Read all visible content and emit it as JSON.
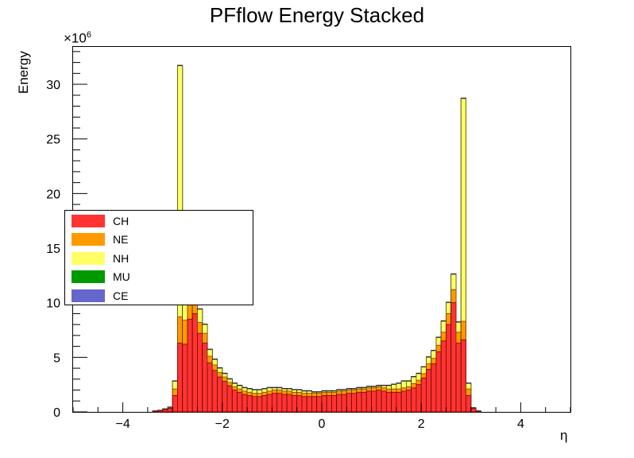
{
  "title": "PFflow Energy Stacked",
  "y_axis_title": "Energy",
  "x_axis_title": "η",
  "y_multiplier_base": "×10",
  "y_multiplier_exp": "6",
  "chart_data": {
    "type": "bar",
    "stacked": true,
    "title": "PFflow Energy Stacked",
    "xlabel": "η",
    "ylabel": "Energy",
    "y_scale_note": "×10^6",
    "xlim": [
      -5,
      5
    ],
    "ylim": [
      0,
      33.5
    ],
    "x_ticks": [
      -4,
      -2,
      0,
      2,
      4
    ],
    "x_tick_labels": [
      "−4",
      "−2",
      "0",
      "2",
      "4"
    ],
    "y_ticks": [
      0,
      5,
      10,
      15,
      20,
      25,
      30
    ],
    "y_tick_labels": [
      "0",
      "5",
      "10",
      "15",
      "20",
      "25",
      "30"
    ],
    "bin_width": 0.1,
    "x_bin_low_edges": [
      -3.4,
      -3.3,
      -3.2,
      -3.1,
      -3.0,
      -2.9,
      -2.8,
      -2.7,
      -2.6,
      -2.5,
      -2.4,
      -2.3,
      -2.2,
      -2.1,
      -2.0,
      -1.9,
      -1.8,
      -1.7,
      -1.6,
      -1.5,
      -1.4,
      -1.3,
      -1.2,
      -1.1,
      -1.0,
      -0.9,
      -0.8,
      -0.7,
      -0.6,
      -0.5,
      -0.4,
      -0.3,
      -0.2,
      -0.1,
      0.0,
      0.1,
      0.2,
      0.3,
      0.4,
      0.5,
      0.6,
      0.7,
      0.8,
      0.9,
      1.0,
      1.1,
      1.2,
      1.3,
      1.4,
      1.5,
      1.6,
      1.7,
      1.8,
      1.9,
      2.0,
      2.1,
      2.2,
      2.3,
      2.4,
      2.5,
      2.6,
      2.7,
      2.8,
      2.9,
      3.0,
      3.1
    ],
    "grid": false,
    "legend_position": "left-middle",
    "series": [
      {
        "name": "CH",
        "color": "#ff3333",
        "values": [
          0.05,
          0.1,
          0.2,
          0.3,
          1.5,
          6.3,
          6.2,
          8.5,
          9.0,
          7.2,
          6.3,
          4.5,
          3.8,
          3.2,
          2.8,
          2.4,
          2.0,
          1.8,
          1.6,
          1.5,
          1.4,
          1.4,
          1.5,
          1.6,
          1.7,
          1.7,
          1.6,
          1.6,
          1.5,
          1.5,
          1.4,
          1.4,
          1.4,
          1.4,
          1.5,
          1.5,
          1.5,
          1.6,
          1.6,
          1.7,
          1.7,
          1.8,
          1.8,
          1.9,
          1.9,
          2.0,
          1.9,
          1.8,
          1.8,
          1.8,
          1.9,
          2.0,
          2.2,
          2.5,
          3.1,
          3.9,
          4.4,
          5.5,
          6.5,
          8.0,
          10.0,
          6.3,
          6.6,
          1.5,
          0.3,
          0.05
        ]
      },
      {
        "name": "NE",
        "color": "#ff9900",
        "values": [
          0,
          0,
          0.02,
          0.05,
          0.6,
          2.4,
          2.2,
          1.8,
          1.5,
          1.0,
          0.9,
          0.6,
          0.5,
          0.4,
          0.4,
          0.3,
          0.3,
          0.3,
          0.3,
          0.3,
          0.3,
          0.3,
          0.3,
          0.3,
          0.3,
          0.3,
          0.3,
          0.3,
          0.3,
          0.3,
          0.3,
          0.3,
          0.3,
          0.3,
          0.3,
          0.3,
          0.3,
          0.3,
          0.3,
          0.3,
          0.3,
          0.3,
          0.3,
          0.3,
          0.3,
          0.3,
          0.3,
          0.3,
          0.3,
          0.3,
          0.3,
          0.3,
          0.4,
          0.4,
          0.4,
          0.5,
          0.5,
          0.6,
          0.8,
          1.0,
          1.2,
          1.0,
          1.7,
          0.6,
          0.02,
          0
        ]
      },
      {
        "name": "NH",
        "color": "#ffff66",
        "values": [
          0,
          0,
          0.02,
          0.05,
          0.7,
          23.0,
          7.3,
          1.8,
          1.0,
          1.2,
          0.8,
          0.6,
          0.5,
          0.4,
          0.3,
          0.3,
          0.3,
          0.3,
          0.3,
          0.3,
          0.3,
          0.3,
          0.3,
          0.3,
          0.2,
          0.2,
          0.2,
          0.2,
          0.2,
          0.2,
          0.2,
          0.2,
          0.1,
          0.1,
          0.1,
          0.1,
          0.1,
          0.1,
          0.1,
          0.1,
          0.1,
          0.1,
          0.1,
          0.1,
          0.1,
          0.1,
          0.2,
          0.3,
          0.4,
          0.5,
          0.6,
          0.5,
          0.6,
          0.6,
          0.6,
          0.6,
          0.7,
          0.7,
          1.0,
          1.0,
          1.4,
          0.9,
          20.4,
          0.5,
          0.02,
          0
        ]
      },
      {
        "name": "MU",
        "color": "#009900",
        "values": [
          0,
          0,
          0,
          0,
          0,
          0,
          0,
          0,
          0,
          0,
          0,
          0,
          0,
          0,
          0,
          0,
          0,
          0,
          0,
          0,
          0,
          0,
          0,
          0,
          0,
          0,
          0,
          0,
          0,
          0,
          0,
          0,
          0,
          0,
          0,
          0,
          0,
          0,
          0,
          0,
          0,
          0,
          0,
          0,
          0,
          0,
          0,
          0,
          0,
          0,
          0,
          0,
          0,
          0,
          0,
          0,
          0,
          0,
          0,
          0,
          0,
          0,
          0,
          0,
          0,
          0
        ]
      },
      {
        "name": "CE",
        "color": "#6666cc",
        "values": [
          0.05,
          0.05,
          0.05,
          0.05,
          0.05,
          0.05,
          0.05,
          0.05,
          0.05,
          0.05,
          0.05,
          0.05,
          0.05,
          0.05,
          0.05,
          0.05,
          0.05,
          0.05,
          0.05,
          0.05,
          0.05,
          0.05,
          0.05,
          0.05,
          0.05,
          0.05,
          0.05,
          0.05,
          0.05,
          0.05,
          0.05,
          0.05,
          0.05,
          0.05,
          0.05,
          0.05,
          0.05,
          0.05,
          0.05,
          0.05,
          0.05,
          0.05,
          0.05,
          0.05,
          0.05,
          0.05,
          0.05,
          0.05,
          0.05,
          0.05,
          0.05,
          0.05,
          0.05,
          0.05,
          0.05,
          0.05,
          0.05,
          0.05,
          0.05,
          0.05,
          0.05,
          0.05,
          0.05,
          0.05,
          0.05,
          0.05
        ]
      }
    ]
  },
  "legend": [
    {
      "label": "CH",
      "color": "#ff3333"
    },
    {
      "label": "NE",
      "color": "#ff9900"
    },
    {
      "label": "NH",
      "color": "#ffff66"
    },
    {
      "label": "MU",
      "color": "#009900"
    },
    {
      "label": "CE",
      "color": "#6666cc"
    }
  ]
}
